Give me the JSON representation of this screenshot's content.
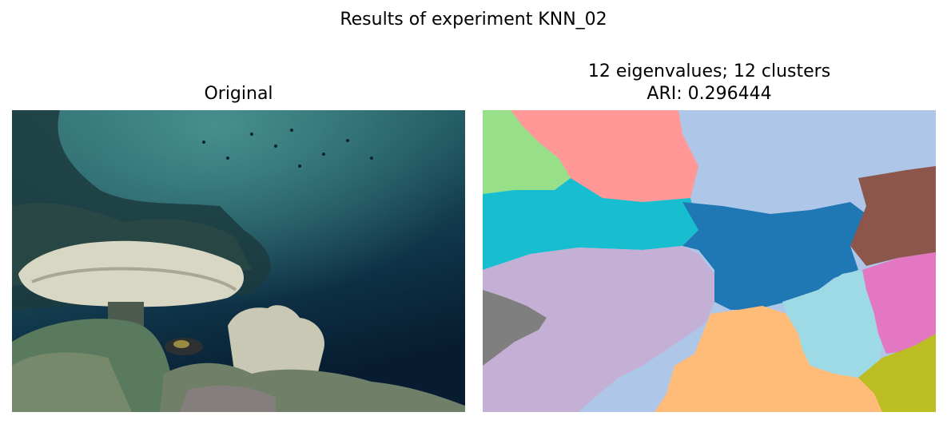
{
  "figure": {
    "suptitle": "Results of experiment KNN_02",
    "left_panel": {
      "title": "Original"
    },
    "right_panel": {
      "title_line1": "12 eigenvalues; 12 clusters",
      "title_line2": "ARI: 0.296444"
    }
  },
  "colors": {
    "background": "#ffffff",
    "segment_palette": [
      "#ff9896",
      "#aec7e8",
      "#98df8a",
      "#17becf",
      "#1f77b4",
      "#8c564b",
      "#c5b0d5",
      "#7f7f7f",
      "#e377c2",
      "#9edae5",
      "#ffbb78",
      "#bcbd22"
    ]
  }
}
